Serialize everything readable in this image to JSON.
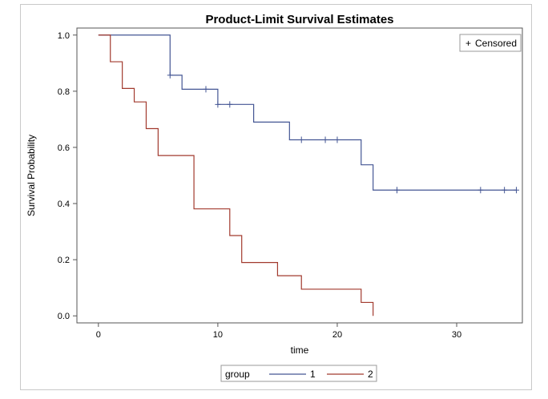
{
  "chart_data": {
    "type": "line",
    "subtype": "step",
    "title": "Product-Limit Survival Estimates",
    "xlabel": "time",
    "ylabel": "Survival Probability",
    "xlim": [
      -1.8,
      35.5
    ],
    "ylim": [
      -0.025,
      1.025
    ],
    "xticks": [
      0,
      10,
      20,
      30
    ],
    "yticks": [
      0.0,
      0.2,
      0.4,
      0.6,
      0.8,
      1.0
    ],
    "xtick_labels": [
      "0",
      "10",
      "20",
      "30"
    ],
    "ytick_labels": [
      "0.0",
      "0.2",
      "0.4",
      "0.6",
      "0.8",
      "1.0"
    ],
    "grid": false,
    "censor_legend": {
      "symbol": "+",
      "label": "Censored",
      "position": "top-right"
    },
    "legend": {
      "title": "group",
      "position": "bottom-center"
    },
    "series": [
      {
        "name": "1",
        "color": "#445694",
        "steps": [
          [
            0,
            1.0
          ],
          [
            6,
            0.857
          ],
          [
            7,
            0.807
          ],
          [
            10,
            0.753
          ],
          [
            13,
            0.69
          ],
          [
            16,
            0.627
          ],
          [
            22,
            0.538
          ],
          [
            23,
            0.448
          ],
          [
            35,
            0.448
          ]
        ],
        "censored": [
          [
            6,
            0.857
          ],
          [
            9,
            0.807
          ],
          [
            10,
            0.753
          ],
          [
            11,
            0.753
          ],
          [
            17,
            0.627
          ],
          [
            19,
            0.627
          ],
          [
            20,
            0.627
          ],
          [
            25,
            0.448
          ],
          [
            32,
            0.448
          ],
          [
            34,
            0.448
          ],
          [
            35,
            0.448
          ]
        ]
      },
      {
        "name": "2",
        "color": "#a23a2e",
        "steps": [
          [
            0,
            1.0
          ],
          [
            1,
            0.905
          ],
          [
            2,
            0.81
          ],
          [
            3,
            0.762
          ],
          [
            4,
            0.667
          ],
          [
            5,
            0.571
          ],
          [
            8,
            0.381
          ],
          [
            11,
            0.286
          ],
          [
            12,
            0.19
          ],
          [
            15,
            0.143
          ],
          [
            17,
            0.095
          ],
          [
            22,
            0.048
          ],
          [
            23,
            0.0
          ]
        ],
        "censored": []
      }
    ]
  }
}
